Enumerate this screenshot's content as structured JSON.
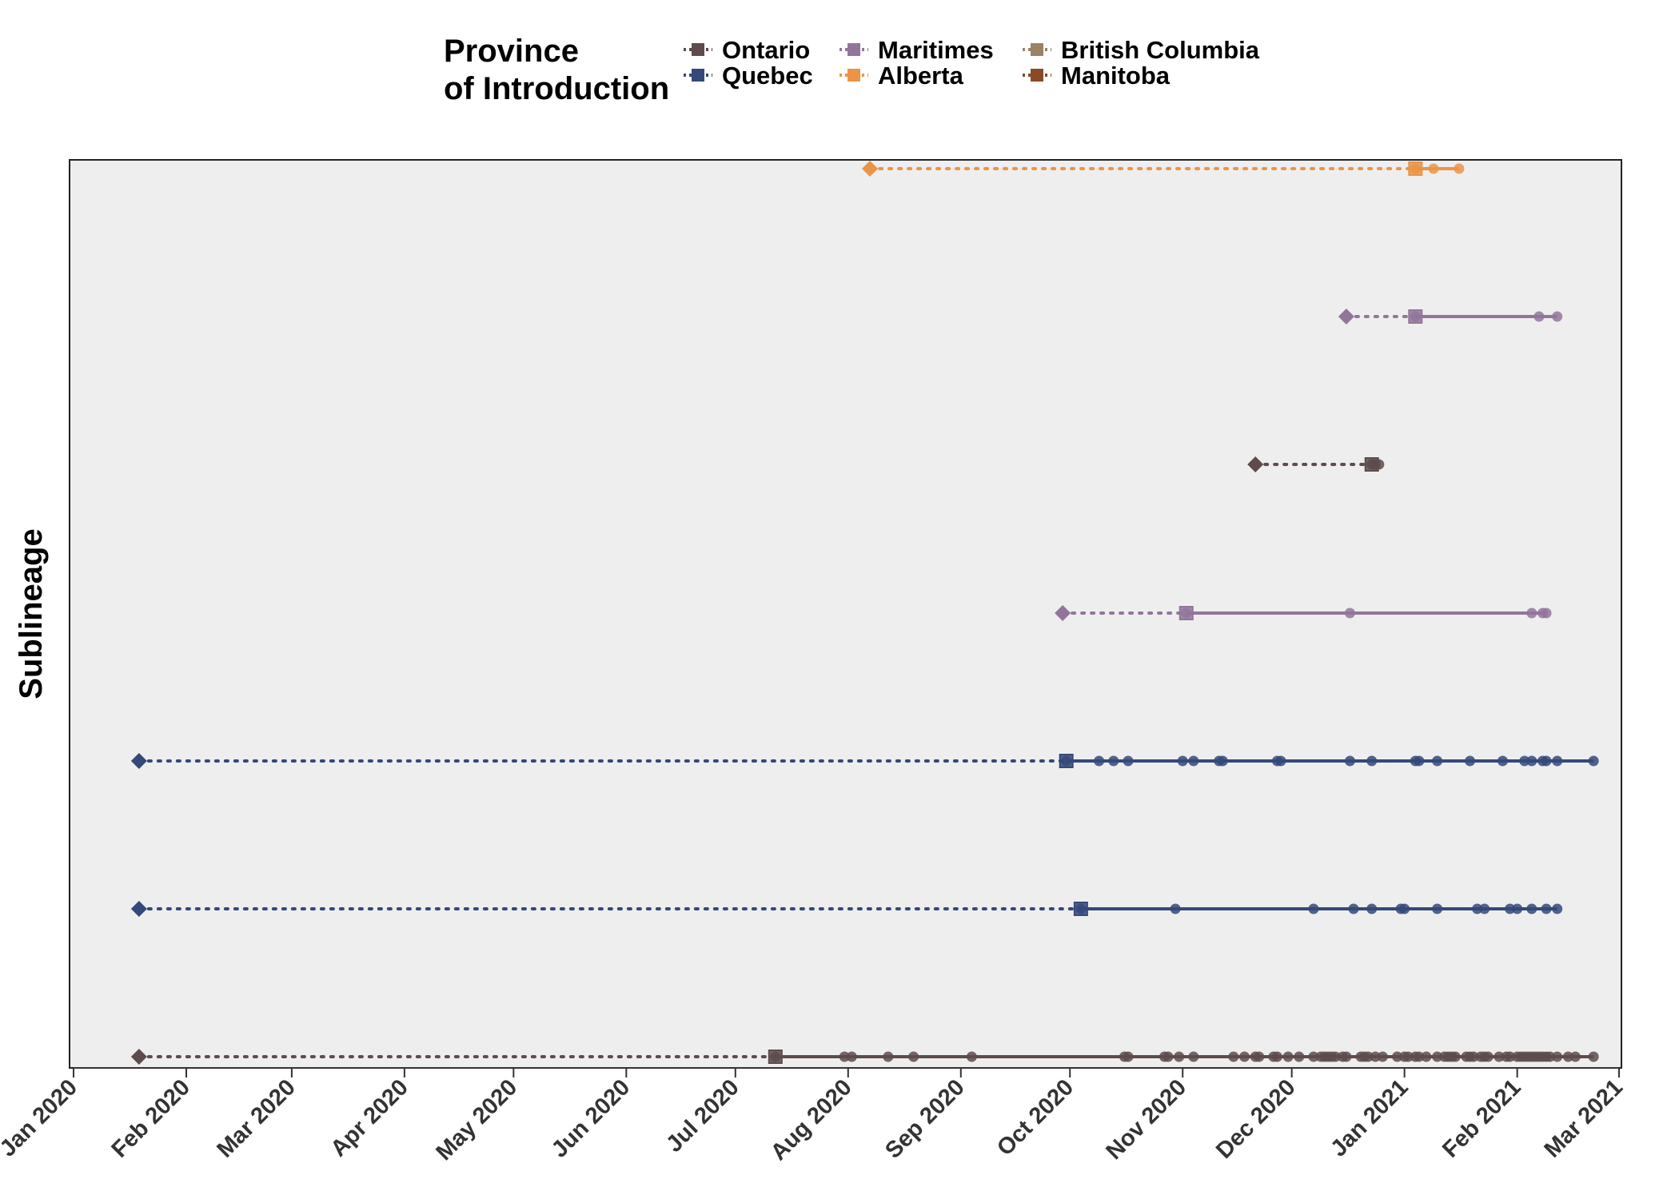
{
  "chart_data": {
    "type": "scatter",
    "title": "",
    "xlabel": "",
    "ylabel": "Sublineage",
    "xlim": [
      "2020-01-01",
      "2021-03-01"
    ],
    "x_ticks": [
      "Jan 2020",
      "Feb 2020",
      "Mar 2020",
      "Apr 2020",
      "May 2020",
      "Jun 2020",
      "Jul 2020",
      "Aug 2020",
      "Sep 2020",
      "Oct 2020",
      "Nov 2020",
      "Dec 2020",
      "Jan 2021",
      "Feb 2021",
      "Mar 2021"
    ],
    "x_tick_dates": [
      "2020-01-01",
      "2020-02-01",
      "2020-03-01",
      "2020-04-01",
      "2020-05-01",
      "2020-06-01",
      "2020-07-01",
      "2020-08-01",
      "2020-09-01",
      "2020-10-01",
      "2020-11-01",
      "2020-12-01",
      "2021-01-01",
      "2021-02-01",
      "2021-03-01"
    ],
    "y_ticks_shown": false,
    "grid": false,
    "legend": {
      "title": "Province\nof Introduction",
      "position": "top",
      "entries": [
        {
          "name": "Ontario",
          "color": "#5e4b4b"
        },
        {
          "name": "Quebec",
          "color": "#34497a"
        },
        {
          "name": "Maritimes",
          "color": "#93759b"
        },
        {
          "name": "Alberta",
          "color": "#eb9447"
        },
        {
          "name": "British Columbia",
          "color": "#9b8266"
        },
        {
          "name": "Manitoba",
          "color": "#8a4a26"
        }
      ]
    },
    "marker_meaning": {
      "diamond": "tMRCA (introduction)",
      "square": "first sampled",
      "circle": "samples"
    },
    "series": [
      {
        "province": "Alberta",
        "color": "#eb9447",
        "tmrca": "2020-08-07",
        "first": "2021-01-04",
        "samples": [
          "2021-01-04",
          "2021-01-09",
          "2021-01-16"
        ]
      },
      {
        "province": "Maritimes",
        "color": "#93759b",
        "tmrca": "2020-12-16",
        "first": "2021-01-04",
        "samples": [
          "2021-01-04",
          "2021-02-07",
          "2021-02-12"
        ]
      },
      {
        "province": "Ontario",
        "color": "#5e4b4b",
        "tmrca": "2020-11-21",
        "first": "2020-12-23",
        "samples": [
          "2020-12-23",
          "2020-12-24",
          "2020-12-25"
        ]
      },
      {
        "province": "Maritimes",
        "color": "#93759b",
        "tmrca": "2020-09-29",
        "first": "2020-11-02",
        "samples": [
          "2020-11-02",
          "2020-12-17",
          "2021-02-05",
          "2021-02-08",
          "2021-02-09"
        ]
      },
      {
        "province": "Quebec",
        "color": "#34497a",
        "tmrca": "2020-01-19",
        "first": "2020-09-30",
        "samples": [
          "2020-09-30",
          "2020-10-09",
          "2020-10-13",
          "2020-10-17",
          "2020-11-01",
          "2020-11-04",
          "2020-11-11",
          "2020-11-12",
          "2020-11-27",
          "2020-11-28",
          "2020-12-17",
          "2020-12-23",
          "2021-01-04",
          "2021-01-05",
          "2021-01-10",
          "2021-01-19",
          "2021-01-28",
          "2021-02-03",
          "2021-02-05",
          "2021-02-08",
          "2021-02-09",
          "2021-02-12",
          "2021-02-22"
        ]
      },
      {
        "province": "Quebec",
        "color": "#34497a",
        "tmrca": "2020-01-19",
        "first": "2020-10-04",
        "samples": [
          "2020-10-04",
          "2020-10-30",
          "2020-12-07",
          "2020-12-18",
          "2020-12-23",
          "2020-12-31",
          "2021-01-01",
          "2021-01-10",
          "2021-01-21",
          "2021-01-23",
          "2021-01-30",
          "2021-02-01",
          "2021-02-05",
          "2021-02-09",
          "2021-02-12"
        ]
      },
      {
        "province": "Ontario",
        "color": "#5e4b4b",
        "tmrca": "2020-01-19",
        "first": "2020-07-12",
        "samples": [
          "2020-07-12",
          "2020-07-31",
          "2020-08-02",
          "2020-08-12",
          "2020-08-19",
          "2020-09-04",
          "2020-10-16",
          "2020-10-17",
          "2020-10-27",
          "2020-10-28",
          "2020-10-31",
          "2020-11-04",
          "2020-11-15",
          "2020-11-18",
          "2020-11-21",
          "2020-11-22",
          "2020-11-26",
          "2020-11-27",
          "2020-11-30",
          "2020-12-03",
          "2020-12-07",
          "2020-12-09",
          "2020-12-10",
          "2020-12-11",
          "2020-12-12",
          "2020-12-13",
          "2020-12-15",
          "2020-12-16",
          "2020-12-20",
          "2020-12-21",
          "2020-12-22",
          "2020-12-24",
          "2020-12-26",
          "2020-12-30",
          "2021-01-01",
          "2021-01-02",
          "2021-01-04",
          "2021-01-05",
          "2021-01-07",
          "2021-01-10",
          "2021-01-12",
          "2021-01-13",
          "2021-01-14",
          "2021-01-15",
          "2021-01-18",
          "2021-01-19",
          "2021-01-20",
          "2021-01-22",
          "2021-01-23",
          "2021-01-24",
          "2021-01-27",
          "2021-01-29",
          "2021-01-30",
          "2021-02-01",
          "2021-02-02",
          "2021-02-03",
          "2021-02-04",
          "2021-02-05",
          "2021-02-06",
          "2021-02-07",
          "2021-02-08",
          "2021-02-09",
          "2021-02-10",
          "2021-02-12",
          "2021-02-15",
          "2021-02-17",
          "2021-02-22"
        ]
      }
    ]
  }
}
